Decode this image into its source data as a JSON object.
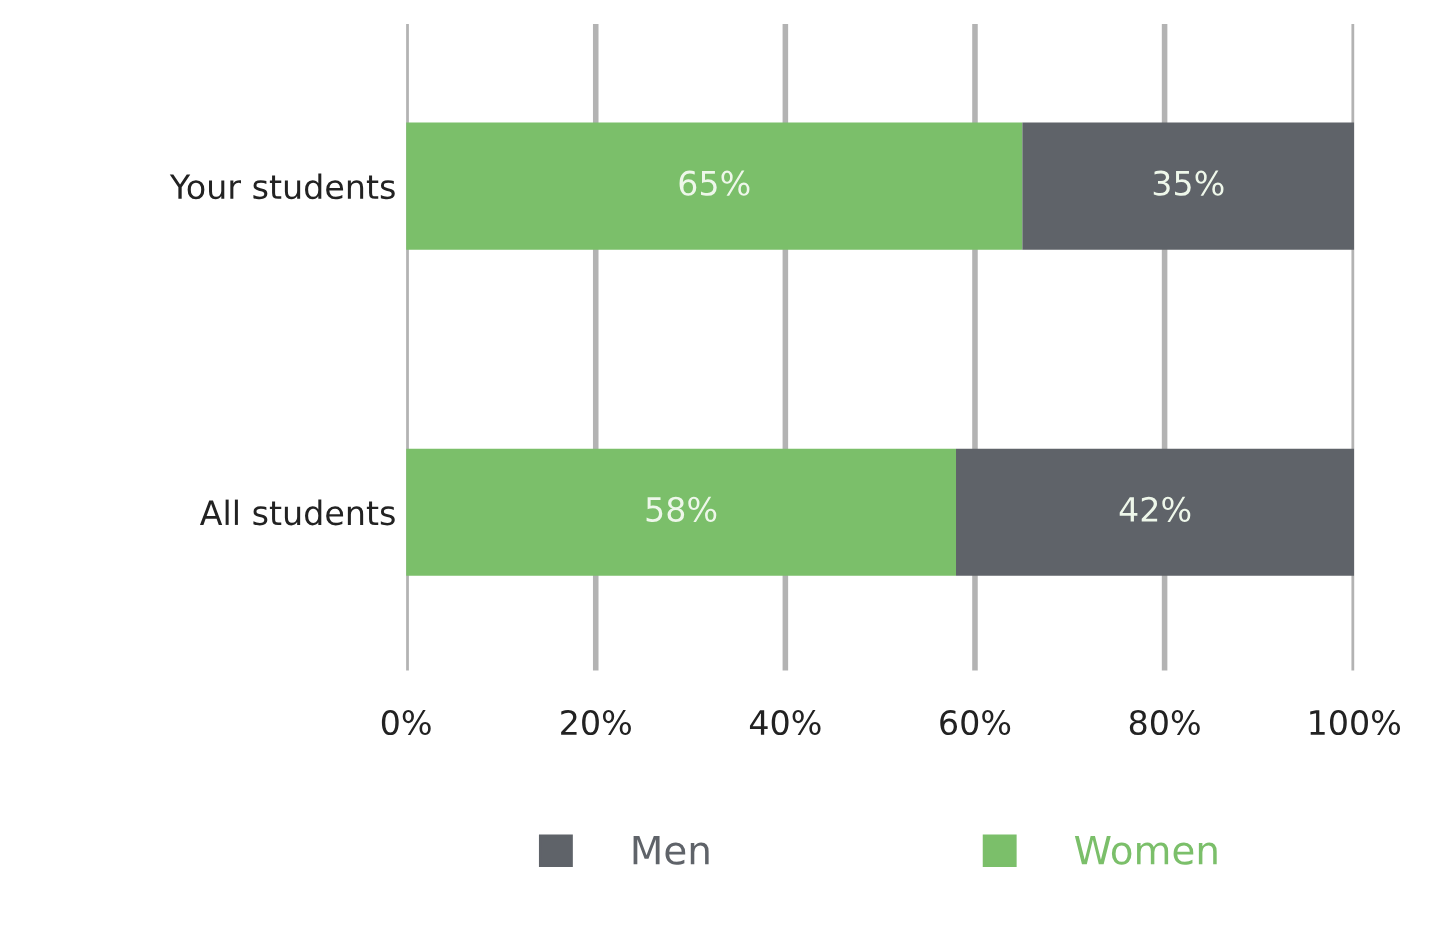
{
  "chart_data": {
    "type": "bar",
    "orientation": "horizontal",
    "stacked": true,
    "categories": [
      "Your students",
      "All students"
    ],
    "series": [
      {
        "name": "Women",
        "color": "#7bbf6a",
        "values": [
          65,
          58
        ],
        "value_labels": [
          "65%",
          "58%"
        ]
      },
      {
        "name": "Men",
        "color": "#5f6369",
        "values": [
          35,
          42
        ],
        "value_labels": [
          "35%",
          "42%"
        ]
      }
    ],
    "xlim": [
      0,
      100
    ],
    "xticks": [
      {
        "value": 0,
        "label": "0%"
      },
      {
        "value": 20,
        "label": "20%"
      },
      {
        "value": 40,
        "label": "40%"
      },
      {
        "value": 60,
        "label": "60%"
      },
      {
        "value": 80,
        "label": "80%"
      },
      {
        "value": 100,
        "label": "100%"
      }
    ],
    "grid": "x",
    "legend": "bottom"
  }
}
